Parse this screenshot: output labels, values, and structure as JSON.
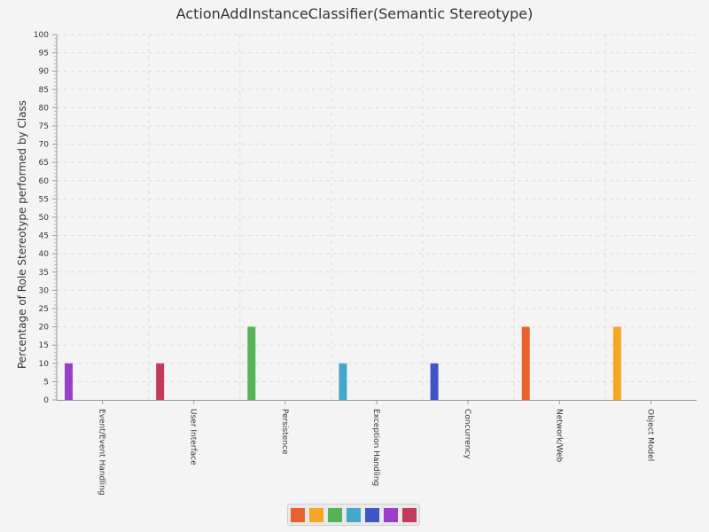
{
  "chart_data": {
    "type": "bar",
    "title": "ActionAddInstanceClassifier(Semantic Stereotype)",
    "xlabel": "",
    "ylabel": "Percentage of Role Stereotype performed by Class",
    "ylim": [
      0,
      100
    ],
    "yticks": [
      0,
      5,
      10,
      15,
      20,
      25,
      30,
      35,
      40,
      45,
      50,
      55,
      60,
      65,
      70,
      75,
      80,
      85,
      90,
      95,
      100
    ],
    "grid": true,
    "legend_position": "bottom",
    "categories": [
      "Event/Event Handling",
      "User Interface",
      "Persistence",
      "Exception Handling",
      "Concurrency",
      "Network/Web",
      "Object Model"
    ],
    "values": [
      10,
      10,
      20,
      10,
      10,
      20,
      20
    ],
    "bar_colors": [
      "#9a3fc9",
      "#c23b5c",
      "#56b356",
      "#45a7c9",
      "#3e55c4",
      "#e8602c",
      "#f5a623"
    ],
    "legend_swatches": [
      "#e8602c",
      "#f5a623",
      "#56b356",
      "#45a7c9",
      "#3e55c4",
      "#9a3fc9",
      "#c23b5c"
    ]
  }
}
